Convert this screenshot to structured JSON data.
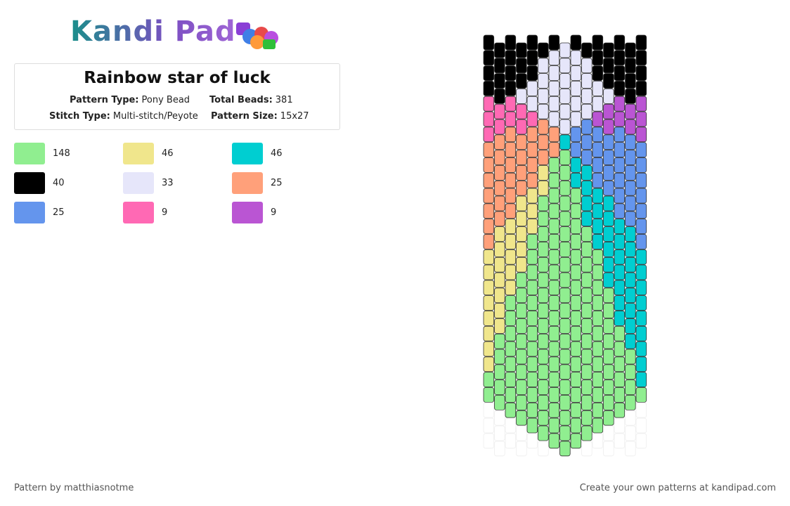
{
  "logo": "Kandi Pad",
  "title": "Rainbow star of luck",
  "info": [
    {
      "label": "Pattern Type:",
      "value": "Pony Bead"
    },
    {
      "label": "Total Beads:",
      "value": 381
    },
    {
      "label": "Stitch Type:",
      "value": "Multi-stitch/Peyote"
    },
    {
      "label": "Pattern Size:",
      "value": "15x27"
    }
  ],
  "legend": [
    {
      "color": "#90ee90",
      "count": 148
    },
    {
      "color": "#f0e68c",
      "count": 46
    },
    {
      "color": "#00ced1",
      "count": 46
    },
    {
      "color": "#000000",
      "count": 40
    },
    {
      "color": "#e6e6fa",
      "count": 33
    },
    {
      "color": "#ffa07a",
      "count": 25
    },
    {
      "color": "#6495ed",
      "count": 25
    },
    {
      "color": "#ff69b4",
      "count": 9
    },
    {
      "color": "#ba55d3",
      "count": 9
    }
  ],
  "footer": {
    "left": "Pattern by matthiasnotme",
    "right": "Create your own patterns at kandipad.com"
  }
}
